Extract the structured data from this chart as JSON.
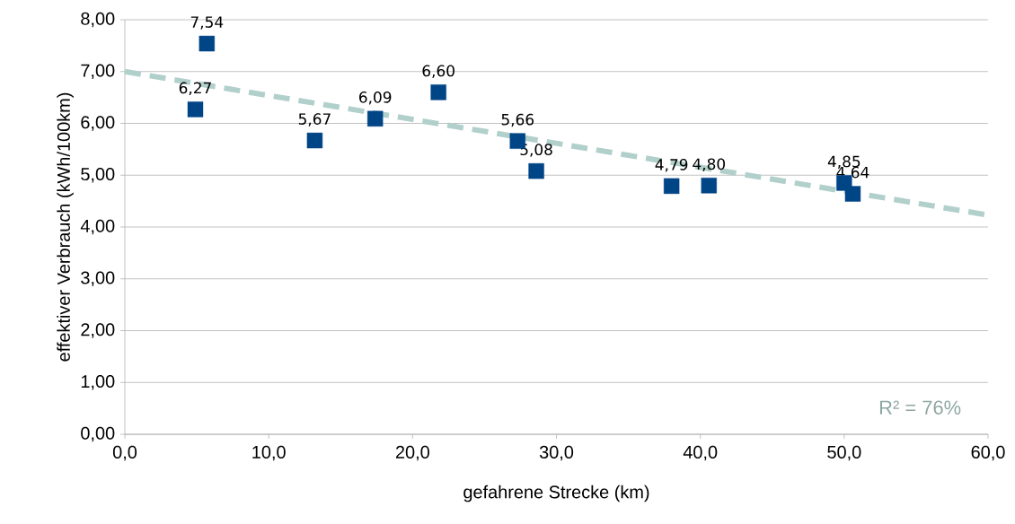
{
  "chart_data": {
    "type": "scatter",
    "xlabel": "gefahrene Strecke (km)",
    "ylabel": "effektiver Verbrauch (kWh/100km)",
    "series": [
      {
        "color": "#004586",
        "marker": "square",
        "x": [
          4.9,
          5.7,
          13.2,
          17.4,
          21.8,
          27.3,
          28.6,
          38.0,
          40.6,
          50.0,
          50.6
        ],
        "values": [
          6.27,
          7.54,
          5.67,
          6.09,
          6.6,
          5.66,
          5.08,
          4.79,
          4.8,
          4.85,
          4.64
        ],
        "value_labels": [
          "6,27",
          "7,54",
          "5,67",
          "6,09",
          "6,60",
          "5,66",
          "5,08",
          "4,79",
          "4,80",
          "4,85",
          "4,64"
        ]
      },
      {
        "type": "line",
        "color": "#b2d0cb",
        "marker": "none",
        "line_style": "dashed",
        "x": [
          0,
          60
        ],
        "values": [
          7.0,
          4.23
        ]
      }
    ],
    "xlim": [
      0,
      60
    ],
    "ylim": [
      0,
      8
    ],
    "xticks": [
      {
        "value": 0,
        "label": "0,0"
      },
      {
        "value": 10,
        "label": "10,0"
      },
      {
        "value": 20,
        "label": "20,0"
      },
      {
        "value": 30,
        "label": "30,0"
      },
      {
        "value": 40,
        "label": "40,0"
      },
      {
        "value": 50,
        "label": "50,0"
      },
      {
        "value": 60,
        "label": "60,0"
      }
    ],
    "yticks": [
      {
        "value": 0,
        "label": "0,00"
      },
      {
        "value": 1,
        "label": "1,00"
      },
      {
        "value": 2,
        "label": "2,00"
      },
      {
        "value": 3,
        "label": "3,00"
      },
      {
        "value": 4,
        "label": "4,00"
      },
      {
        "value": 5,
        "label": "5,00"
      },
      {
        "value": 6,
        "label": "6,00"
      },
      {
        "value": 7,
        "label": "7,00"
      },
      {
        "value": 8,
        "label": "8,00"
      }
    ],
    "grid": "y",
    "legend": false,
    "annotations": [
      "R² = 76%"
    ]
  }
}
